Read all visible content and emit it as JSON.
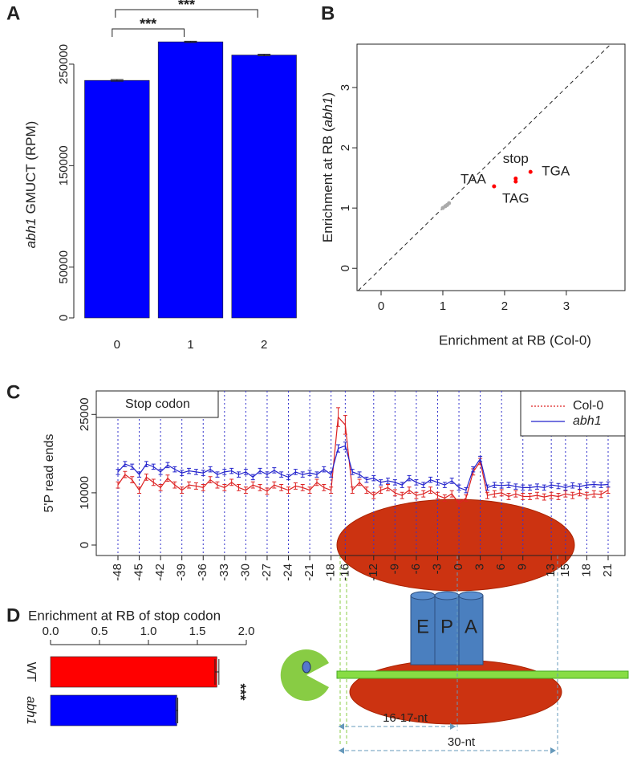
{
  "chart_data": [
    {
      "type": "bar",
      "panel": "A",
      "categories": [
        "0",
        "1",
        "2"
      ],
      "values": [
        234000,
        272000,
        259000
      ],
      "errors": [
        800,
        600,
        800
      ],
      "color": "#0000ff",
      "ylabel": {
        "italic": "abh1",
        "text": "GMUCT (RPM)"
      },
      "ylim": [
        0,
        280000
      ],
      "yticks": [
        0,
        50000,
        150000,
        250000
      ],
      "significance": [
        {
          "pair": [
            0,
            1
          ],
          "label": "***"
        },
        {
          "pair": [
            0,
            2
          ],
          "label": "***"
        }
      ]
    },
    {
      "type": "scatter",
      "panel": "B",
      "xlabel": "Enrichment at RB (Col-0)",
      "ylabel": {
        "text": "Enrichment at RB (",
        "italic": "abh1",
        "end": ")"
      },
      "xlim": [
        -0.39,
        3.95
      ],
      "ylim": [
        -0.37,
        3.72
      ],
      "xticks": [
        0,
        1,
        2,
        3
      ],
      "yticks": [
        0,
        1,
        2,
        3
      ],
      "diagonal": true,
      "series": [
        {
          "color": "#aaaaaa",
          "x": [
            1.0,
            1.04,
            1.07,
            1.1
          ],
          "y": [
            1.0,
            1.03,
            1.05,
            1.08
          ]
        },
        {
          "color": "#ff0000",
          "x": [
            1.83,
            2.18,
            2.18,
            2.42
          ],
          "y": [
            1.36,
            1.49,
            1.44,
            1.6
          ]
        }
      ],
      "annotations": [
        {
          "text": "TAA",
          "point": 0
        },
        {
          "text": "stop",
          "point": 1
        },
        {
          "text": "TAG",
          "point": 2
        },
        {
          "text": "TGA",
          "point": 3
        }
      ]
    },
    {
      "type": "line",
      "panel": "C",
      "ylabel": "5'P read ends",
      "annotation": "Stop codon",
      "vgrid": true,
      "x": [
        -48,
        -47,
        -46,
        -45,
        -44,
        -43,
        -42,
        -41,
        -40,
        -39,
        -38,
        -37,
        -36,
        -35,
        -34,
        -33,
        -32,
        -31,
        -30,
        -29,
        -28,
        -27,
        -26,
        -25,
        -24,
        -23,
        -22,
        -21,
        -20,
        -19,
        -18,
        -17,
        -16,
        -15,
        -14,
        -13,
        -12,
        -11,
        -10,
        -9,
        -8,
        -7,
        -6,
        -5,
        -4,
        -3,
        -2,
        -1,
        0,
        1,
        2,
        3,
        4,
        5,
        6,
        7,
        8,
        9,
        10,
        11,
        12,
        13,
        14,
        15,
        16,
        17,
        18,
        19,
        20,
        21
      ],
      "series": [
        {
          "name": "Col-0",
          "color": "#dd2222",
          "legend_dash": "dotted",
          "values": [
            11500,
            13500,
            12500,
            10500,
            13000,
            12000,
            11000,
            12800,
            11500,
            10500,
            11500,
            11300,
            11000,
            12500,
            11500,
            11000,
            12000,
            11000,
            10500,
            11500,
            11000,
            10300,
            11500,
            11000,
            10500,
            11300,
            11000,
            10500,
            12000,
            11000,
            10500,
            24500,
            23000,
            10500,
            12000,
            10500,
            9500,
            10500,
            11000,
            10000,
            9500,
            10500,
            9500,
            9800,
            10500,
            9500,
            9000,
            9800,
            8000,
            9000,
            14000,
            16000,
            9500,
            9800,
            10000,
            9300,
            9800,
            9300,
            9300,
            9500,
            9200,
            9500,
            9300,
            9800,
            9500,
            10000,
            9500,
            9800,
            9700,
            10500
          ],
          "errors": [
            600,
            600,
            600,
            600,
            600,
            600,
            600,
            600,
            600,
            600,
            600,
            600,
            600,
            600,
            600,
            600,
            600,
            600,
            600,
            600,
            600,
            600,
            600,
            600,
            600,
            600,
            600,
            600,
            600,
            600,
            600,
            1800,
            1800,
            600,
            600,
            600,
            600,
            600,
            600,
            600,
            600,
            600,
            600,
            600,
            600,
            600,
            600,
            600,
            600,
            600,
            600,
            600,
            600,
            600,
            600,
            600,
            600,
            600,
            600,
            600,
            600,
            600,
            600,
            600,
            600,
            600,
            600,
            600,
            600,
            600
          ]
        },
        {
          "name": "abh1",
          "italic": true,
          "color": "#2222cc",
          "legend_dash": "solid",
          "values": [
            14000,
            15500,
            15000,
            13500,
            15500,
            15000,
            14000,
            15300,
            14500,
            13800,
            14200,
            14000,
            13800,
            14500,
            13500,
            14000,
            14200,
            13500,
            14000,
            13000,
            14200,
            13500,
            14300,
            13500,
            13000,
            14000,
            13500,
            13800,
            13500,
            14500,
            13500,
            18500,
            19000,
            14000,
            13500,
            12500,
            12800,
            12000,
            12300,
            12000,
            11500,
            12800,
            12000,
            11500,
            12500,
            12000,
            11500,
            12300,
            11000,
            10500,
            14500,
            16500,
            11000,
            11500,
            11400,
            11500,
            11200,
            11000,
            11000,
            11200,
            11000,
            11500,
            11300,
            11000,
            11400,
            11200,
            11500,
            11600,
            11500,
            11600
          ],
          "errors": [
            500,
            500,
            500,
            500,
            500,
            500,
            500,
            500,
            500,
            500,
            500,
            500,
            500,
            500,
            500,
            500,
            500,
            500,
            500,
            500,
            500,
            500,
            500,
            500,
            500,
            500,
            500,
            500,
            500,
            500,
            500,
            700,
            700,
            500,
            500,
            500,
            500,
            500,
            500,
            500,
            500,
            500,
            500,
            500,
            500,
            500,
            500,
            500,
            500,
            500,
            500,
            500,
            500,
            500,
            500,
            500,
            500,
            500,
            500,
            500,
            500,
            500,
            500,
            500,
            500,
            500,
            500,
            500,
            500,
            500
          ]
        }
      ],
      "xticks": [
        -48,
        -45,
        -42,
        -39,
        -36,
        -33,
        -30,
        -27,
        -24,
        -21,
        -18,
        -16,
        -12,
        -9,
        -6,
        -3,
        0,
        3,
        6,
        9,
        13,
        15,
        18,
        21
      ],
      "ylim": [
        -2000,
        29500
      ],
      "yticks": [
        0,
        10000,
        25000
      ]
    },
    {
      "type": "hbar",
      "panel": "D",
      "title": "Enrichment at RB of stop codon",
      "categories": [
        "WT",
        "abh1"
      ],
      "italic_categories": [
        false,
        true
      ],
      "values": [
        1.7,
        1.29
      ],
      "errors": [
        0.02,
        0.01
      ],
      "colors": [
        "#ff0000",
        "#0000ff"
      ],
      "xlim": [
        0,
        2
      ],
      "xticks": [
        {
          "value": 0,
          "label": "0.0"
        },
        {
          "value": 0.5,
          "label": "0.5"
        },
        {
          "value": 1,
          "label": "1.0"
        },
        {
          "value": 1.5,
          "label": "1.5"
        },
        {
          "value": 2,
          "label": "2.0"
        }
      ],
      "significance": "***"
    }
  ],
  "diagram": {
    "sites": [
      "E",
      "P",
      "A"
    ],
    "spans": [
      "16-17-nt",
      "30-nt"
    ]
  }
}
